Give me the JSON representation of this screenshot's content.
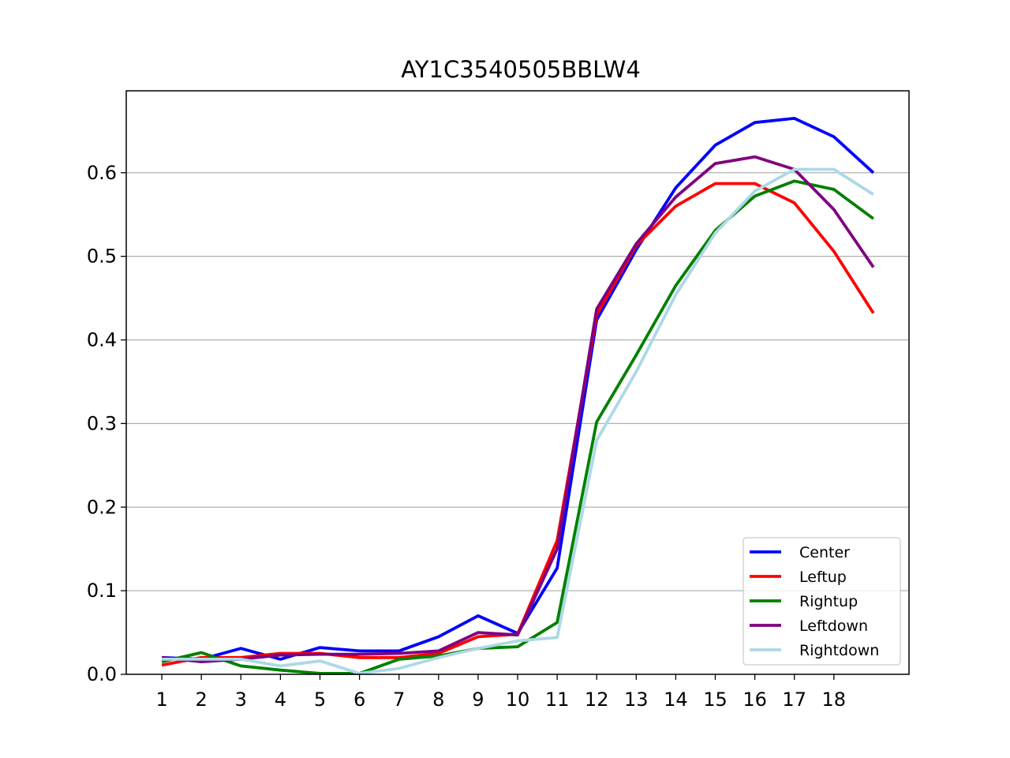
{
  "chart_data": {
    "type": "line",
    "title": "AY1C3540505BBLW4",
    "xlabel": "",
    "ylabel": "",
    "x": [
      1,
      2,
      3,
      4,
      5,
      6,
      7,
      8,
      9,
      10,
      11,
      12,
      13,
      14,
      15,
      16,
      17,
      18,
      19
    ],
    "x_tick_labels": [
      "1",
      "2",
      "3",
      "4",
      "5",
      "6",
      "7",
      "8",
      "9",
      "10",
      "11",
      "12",
      "13",
      "14",
      "15",
      "16",
      "17",
      "18"
    ],
    "x_tick_values": [
      1,
      2,
      3,
      4,
      5,
      6,
      7,
      8,
      9,
      10,
      11,
      12,
      13,
      14,
      15,
      16,
      17,
      18
    ],
    "xlim": [
      0.1,
      19.9
    ],
    "ylim": [
      0,
      0.698
    ],
    "y_ticks": [
      0.0,
      0.1,
      0.2,
      0.3,
      0.4,
      0.5,
      0.6
    ],
    "y_tick_labels": [
      "0.0",
      "0.1",
      "0.2",
      "0.3",
      "0.4",
      "0.5",
      "0.6"
    ],
    "grid": "y",
    "legend_position": "bottom-right",
    "series": [
      {
        "name": "Center",
        "color": "#0000ff",
        "values": [
          0.02,
          0.018,
          0.031,
          0.018,
          0.032,
          0.028,
          0.028,
          0.045,
          0.07,
          0.049,
          0.127,
          0.424,
          0.508,
          0.582,
          0.633,
          0.66,
          0.665,
          0.643,
          0.6
        ]
      },
      {
        "name": "Leftup",
        "color": "#ff0000",
        "values": [
          0.011,
          0.02,
          0.02,
          0.025,
          0.025,
          0.02,
          0.02,
          0.025,
          0.045,
          0.048,
          0.16,
          0.43,
          0.513,
          0.56,
          0.587,
          0.587,
          0.564,
          0.506,
          0.432
        ]
      },
      {
        "name": "Rightup",
        "color": "#008000",
        "values": [
          0.015,
          0.026,
          0.01,
          0.005,
          0.001,
          0.001,
          0.018,
          0.022,
          0.031,
          0.033,
          0.062,
          0.302,
          0.382,
          0.465,
          0.531,
          0.572,
          0.59,
          0.58,
          0.545
        ]
      },
      {
        "name": "Leftdown",
        "color": "#800080",
        "values": [
          0.02,
          0.015,
          0.018,
          0.023,
          0.024,
          0.024,
          0.025,
          0.028,
          0.05,
          0.047,
          0.15,
          0.437,
          0.515,
          0.571,
          0.611,
          0.619,
          0.604,
          0.556,
          0.487
        ]
      },
      {
        "name": "Rightdown",
        "color": "#add8e6",
        "values": [
          0.018,
          0.018,
          0.018,
          0.01,
          0.016,
          0.001,
          0.007,
          0.02,
          0.031,
          0.04,
          0.044,
          0.28,
          0.362,
          0.454,
          0.528,
          0.578,
          0.604,
          0.604,
          0.574
        ]
      }
    ]
  }
}
